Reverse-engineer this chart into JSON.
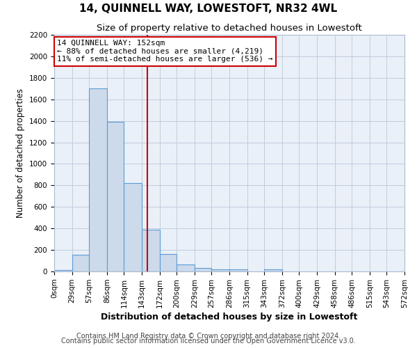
{
  "title": "14, QUINNELL WAY, LOWESTOFT, NR32 4WL",
  "subtitle": "Size of property relative to detached houses in Lowestoft",
  "xlabel": "Distribution of detached houses by size in Lowestoft",
  "ylabel": "Number of detached properties",
  "bar_color": "#ccdaeb",
  "bar_edge_color": "#5b9bd5",
  "bin_labels": [
    "0sqm",
    "29sqm",
    "57sqm",
    "86sqm",
    "114sqm",
    "143sqm",
    "172sqm",
    "200sqm",
    "229sqm",
    "257sqm",
    "286sqm",
    "315sqm",
    "343sqm",
    "372sqm",
    "400sqm",
    "429sqm",
    "458sqm",
    "486sqm",
    "515sqm",
    "543sqm",
    "572sqm"
  ],
  "bar_heights": [
    10,
    155,
    1700,
    1390,
    820,
    390,
    165,
    65,
    30,
    20,
    20,
    0,
    20,
    0,
    0,
    0,
    0,
    0,
    0,
    0
  ],
  "bin_edges": [
    0,
    29,
    57,
    86,
    114,
    143,
    172,
    200,
    229,
    257,
    286,
    315,
    343,
    372,
    400,
    429,
    458,
    486,
    515,
    543,
    572
  ],
  "vline_x": 152,
  "vline_color": "#cc0000",
  "annotation_title": "14 QUINNELL WAY: 152sqm",
  "annotation_line1": "← 88% of detached houses are smaller (4,219)",
  "annotation_line2": "11% of semi-detached houses are larger (536) →",
  "annotation_box_color": "#ffffff",
  "annotation_box_edge": "#cc0000",
  "ylim": [
    0,
    2200
  ],
  "yticks": [
    0,
    200,
    400,
    600,
    800,
    1000,
    1200,
    1400,
    1600,
    1800,
    2000,
    2200
  ],
  "grid_color": "#c0ccdd",
  "background_color": "#eaf0f8",
  "footer1": "Contains HM Land Registry data © Crown copyright and database right 2024.",
  "footer2": "Contains public sector information licensed under the Open Government Licence v3.0.",
  "title_fontsize": 11,
  "subtitle_fontsize": 9.5,
  "annotation_fontsize": 8,
  "xlabel_fontsize": 9,
  "ylabel_fontsize": 8.5,
  "footer_fontsize": 7,
  "tick_fontsize": 7.5
}
